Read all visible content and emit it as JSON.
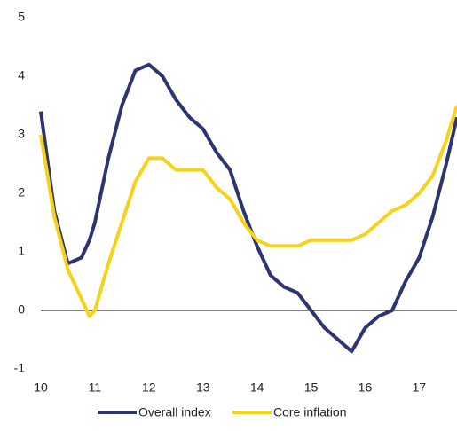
{
  "chart_data": {
    "type": "line",
    "x": [
      10,
      10.25,
      10.5,
      10.75,
      10.9,
      11,
      11.25,
      11.5,
      11.75,
      12,
      12.25,
      12.5,
      12.75,
      13,
      13.25,
      13.5,
      13.75,
      14,
      14.25,
      14.5,
      14.75,
      15,
      15.25,
      15.5,
      15.75,
      16,
      16.25,
      16.5,
      16.75,
      17,
      17.25,
      17.5,
      17.7
    ],
    "series": [
      {
        "name": "Overall index",
        "color": "#2e3470",
        "values": [
          3.4,
          1.7,
          0.8,
          0.9,
          1.2,
          1.5,
          2.6,
          3.5,
          4.1,
          4.2,
          4.0,
          3.6,
          3.3,
          3.1,
          2.7,
          2.4,
          1.7,
          1.1,
          0.6,
          0.4,
          0.3,
          0.0,
          -0.3,
          -0.5,
          -0.7,
          -0.3,
          -0.1,
          0.0,
          0.5,
          0.9,
          1.6,
          2.5,
          3.3
        ]
      },
      {
        "name": "Core inflation",
        "color": "#f5d31a",
        "values": [
          3.0,
          1.6,
          0.7,
          0.2,
          -0.1,
          0.0,
          0.8,
          1.5,
          2.2,
          2.6,
          2.6,
          2.4,
          2.4,
          2.4,
          2.1,
          1.9,
          1.5,
          1.2,
          1.1,
          1.1,
          1.1,
          1.2,
          1.2,
          1.2,
          1.2,
          1.3,
          1.5,
          1.7,
          1.8,
          2.0,
          2.3,
          2.9,
          3.5
        ]
      }
    ],
    "xlim": [
      10,
      17.7
    ],
    "xticks": [
      10,
      11,
      12,
      13,
      14,
      15,
      16,
      17
    ],
    "ylim": [
      -1,
      5
    ],
    "yticks": [
      -1,
      0,
      1,
      2,
      3,
      4,
      5
    ],
    "zero_line": true
  }
}
